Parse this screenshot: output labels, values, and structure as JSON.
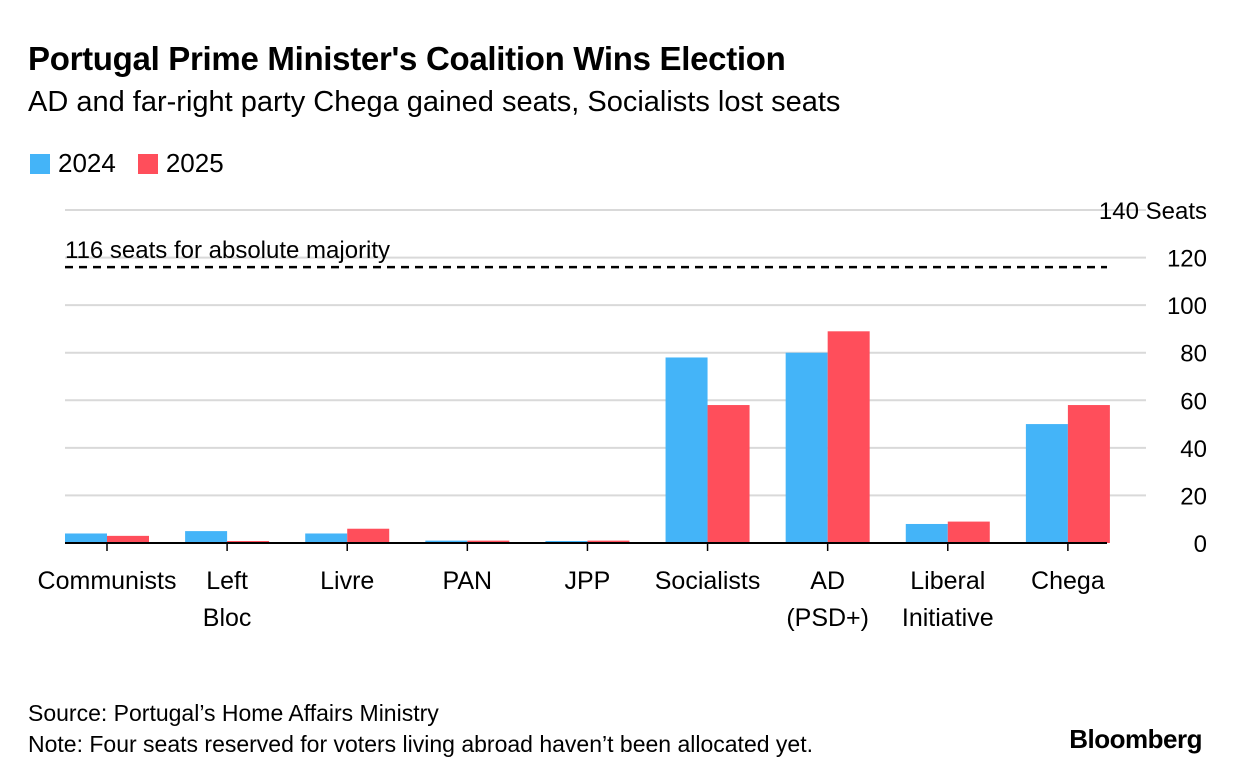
{
  "chart_data": {
    "type": "bar",
    "title": "Portugal Prime Minister's Coalition Wins Election",
    "subtitle": "AD and far-right party Chega gained seats, Socialists lost seats",
    "categories": [
      [
        "Communists"
      ],
      [
        "Left",
        "Bloc"
      ],
      [
        "Livre"
      ],
      [
        "PAN"
      ],
      [
        "JPP"
      ],
      [
        "Socialists"
      ],
      [
        "AD",
        "(PSD+)"
      ],
      [
        "Liberal",
        "Initiative"
      ],
      [
        "Chega"
      ]
    ],
    "series": [
      {
        "name": "2024",
        "color": "#44b4f8",
        "values": [
          4,
          5,
          4,
          1,
          0,
          78,
          80,
          8,
          50
        ]
      },
      {
        "name": "2025",
        "color": "#ff4e5b",
        "values": [
          3,
          0,
          6,
          1,
          1,
          58,
          89,
          9,
          58
        ]
      }
    ],
    "ylim": [
      0,
      140
    ],
    "yticks": [
      0,
      20,
      40,
      60,
      80,
      100,
      120,
      140
    ],
    "top_tick_label": "140 Seats",
    "reference_line": {
      "value": 116,
      "label": "116 seats for absolute majority"
    },
    "axis_position": "right",
    "grid": true
  },
  "footer": {
    "source": "Source: Portugal’s Home Affairs Ministry",
    "note": "Note: Four seats reserved for voters living abroad haven’t been allocated yet."
  },
  "brand": "Bloomberg"
}
